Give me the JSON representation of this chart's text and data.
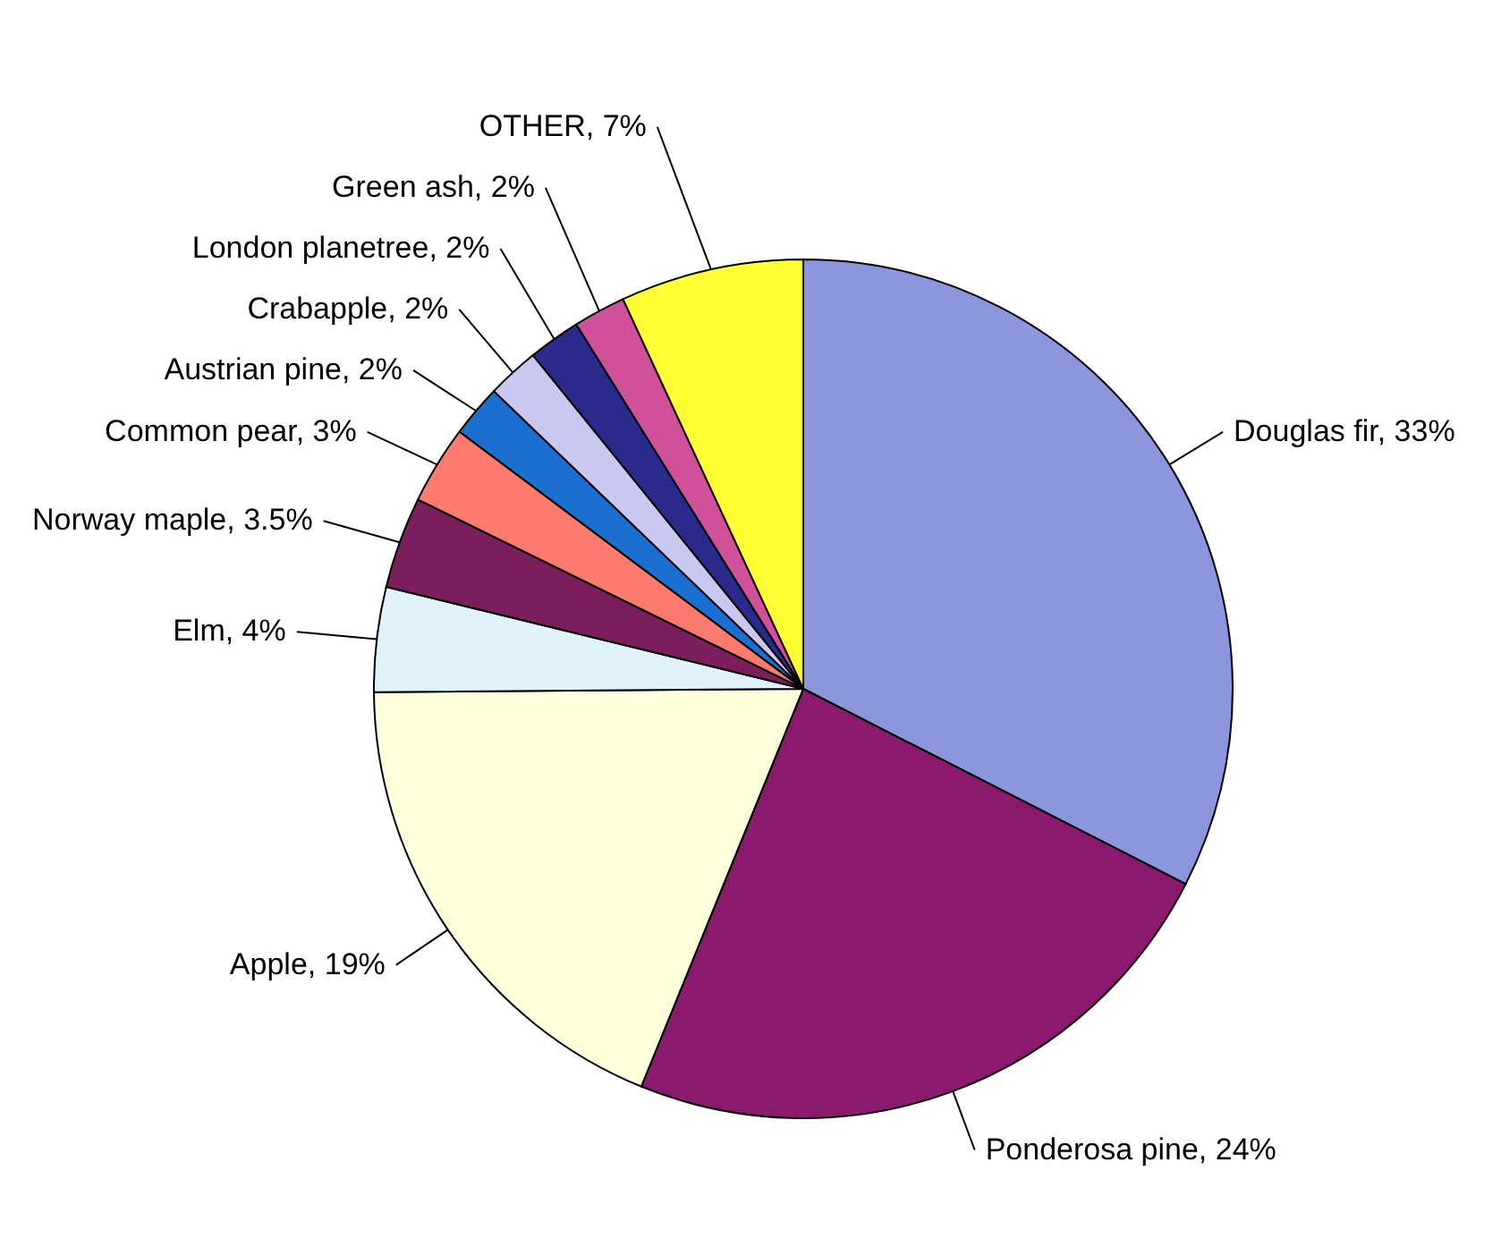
{
  "chart_data": {
    "type": "pie",
    "categories": [
      "Douglas fir",
      "Ponderosa pine",
      "Apple",
      "Elm",
      "Norway maple",
      "Common pear",
      "Austrian pine",
      "Crabapple",
      "London planetree",
      "Green ash",
      "OTHER"
    ],
    "values": [
      33,
      24,
      19,
      4,
      3.5,
      3,
      2,
      2,
      2,
      2,
      7
    ],
    "colors": [
      "#8c96dc",
      "#8b1a6e",
      "#ffffdc",
      "#e0f2fc",
      "#7a1e5e",
      "#ff7a6e",
      "#1a6fd0",
      "#c8c8f0",
      "#2a2a8c",
      "#d0509a",
      "#ffff33"
    ],
    "value_labels": [
      "33%",
      "24%",
      "19%",
      "4%",
      "3.5%",
      "3%",
      "2%",
      "2%",
      "2%",
      "2%",
      "7%"
    ]
  }
}
